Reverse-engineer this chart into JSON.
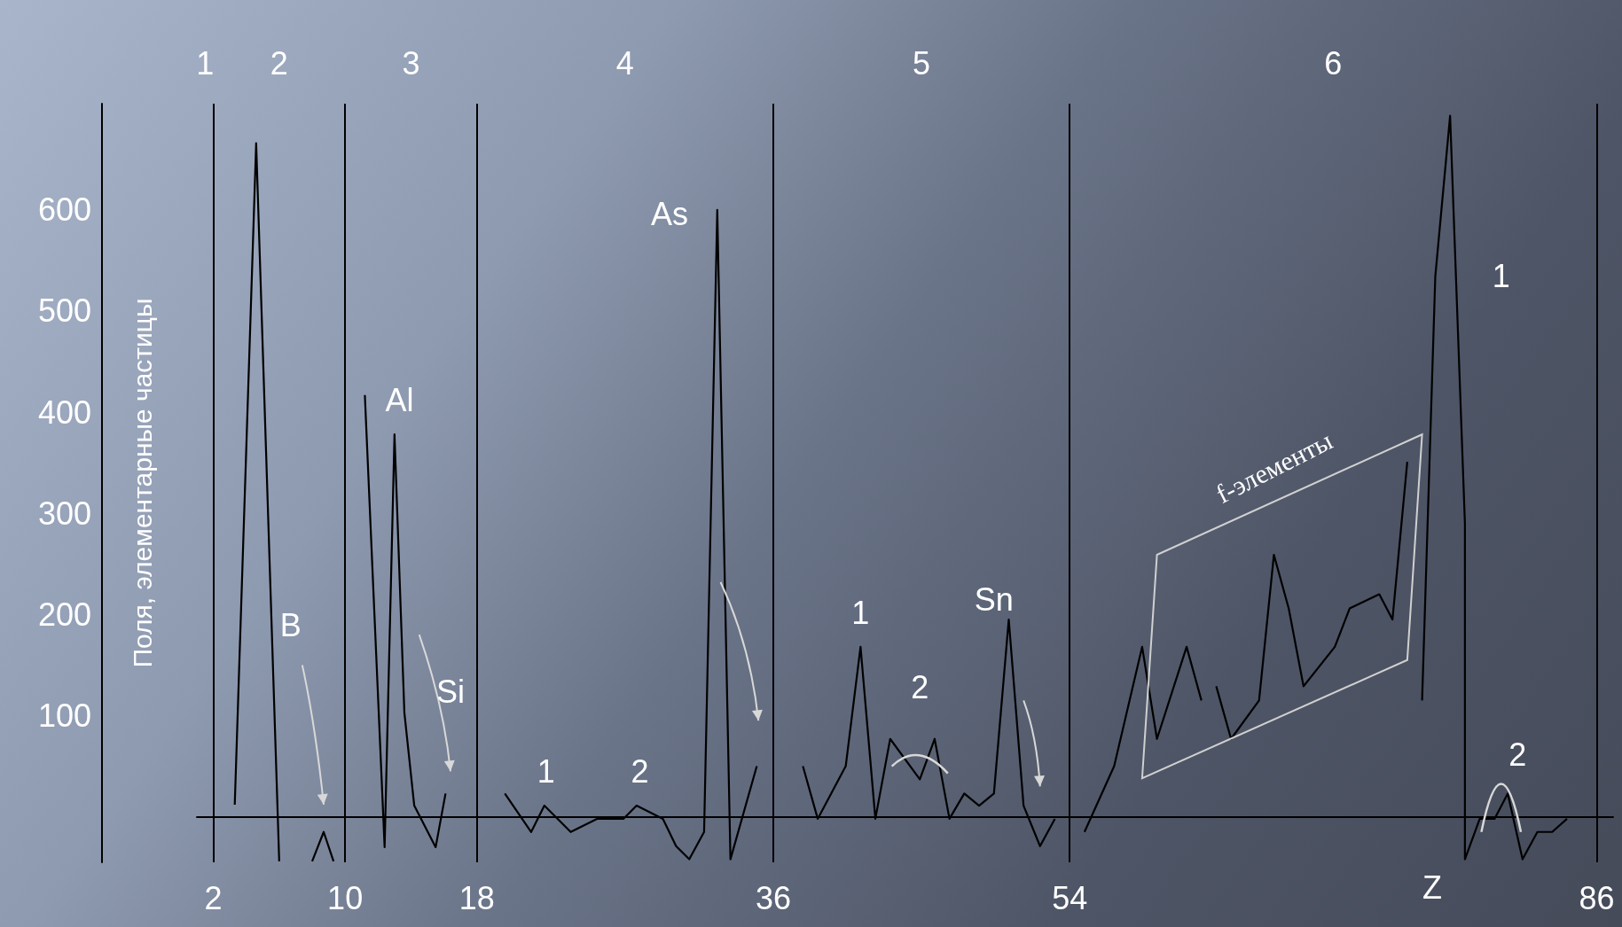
{
  "chart_data": {
    "type": "line",
    "xlabel": "Z",
    "ylabel": "Поля, элементарные частицы",
    "xlim": [
      1,
      87
    ],
    "ylim": [
      -45,
      705
    ],
    "xticks": [
      2,
      10,
      18,
      36,
      54,
      86
    ],
    "yticks": [
      100,
      200,
      300,
      400,
      500,
      600
    ],
    "grid": false,
    "marker": "none",
    "line_style": "solid",
    "series": [
      {
        "color": "#000000",
        "x": [
          3.3,
          4.6,
          6.0
        ],
        "values": [
          12,
          666,
          -44
        ]
      },
      {
        "color": "#000000",
        "x": [
          8.0,
          8.7,
          9.3
        ],
        "values": [
          -44,
          -15,
          -44
        ]
      },
      {
        "color": "#000000",
        "x": [
          11.2,
          12.4,
          13.0,
          13.6,
          14.2,
          15.5,
          16.1
        ],
        "values": [
          417,
          -30,
          378,
          103,
          11,
          -30,
          23
        ]
      },
      {
        "color": "#000000",
        "x": [
          19.7,
          21.3,
          22.1,
          23.7,
          25.3,
          26.9,
          27.7,
          29.3,
          30.1,
          30.9,
          31.8,
          32.6,
          33.4,
          35.0
        ],
        "values": [
          23,
          -15,
          11,
          -15,
          -2,
          -2,
          11,
          -2,
          -29,
          -42,
          -15,
          600,
          -42,
          50
        ]
      },
      {
        "color": "#000000",
        "x": [
          37.8,
          38.7,
          40.4,
          41.3,
          42.2,
          43.1,
          44.9,
          45.8,
          46.7,
          47.6,
          48.5,
          49.4,
          50.3,
          51.2,
          52.2,
          53.1
        ],
        "values": [
          50,
          -2,
          50,
          168,
          -2,
          77,
          37,
          77,
          -2,
          23,
          11,
          23,
          195,
          11,
          -29,
          -2
        ]
      },
      {
        "color": "#000000",
        "x": [
          54.9,
          56.7,
          58.4,
          59.3,
          61.1,
          62.0
        ],
        "values": [
          -15,
          50,
          168,
          77,
          168,
          115
        ]
      },
      {
        "color": "#000000",
        "x": [
          62.9,
          63.8,
          65.5,
          66.4,
          67.3,
          68.2,
          70.1,
          71.0,
          72.8,
          73.6,
          74.5
        ],
        "values": [
          129,
          77,
          115,
          259,
          206,
          129,
          168,
          206,
          220,
          195,
          351
        ]
      },
      {
        "color": "#000000",
        "x": [
          75.4,
          76.2,
          77.1,
          78.0,
          78.0,
          78.9,
          79.8,
          80.6,
          81.5,
          82.4,
          83.3,
          84.2
        ],
        "values": [
          115,
          534,
          693,
          290,
          -42,
          -2,
          -2,
          23,
          -42,
          -15,
          -15,
          -2
        ]
      }
    ],
    "ref_lines": [
      {
        "axis": "x",
        "value": 2,
        "color": "#000000"
      },
      {
        "axis": "x",
        "value": 10,
        "color": "#000000"
      },
      {
        "axis": "x",
        "value": 18,
        "color": "#000000"
      },
      {
        "axis": "x",
        "value": 36,
        "color": "#000000"
      },
      {
        "axis": "x",
        "value": 54,
        "color": "#000000"
      },
      {
        "axis": "x",
        "value": 86,
        "color": "#000000"
      }
    ],
    "annotations": [
      "1",
      "2",
      "3",
      "4",
      "5",
      "6",
      "B",
      "Al",
      "Si",
      "As",
      "1",
      "2",
      "1",
      "2",
      "Sn",
      "f-элементы",
      "1",
      "2"
    ]
  }
}
